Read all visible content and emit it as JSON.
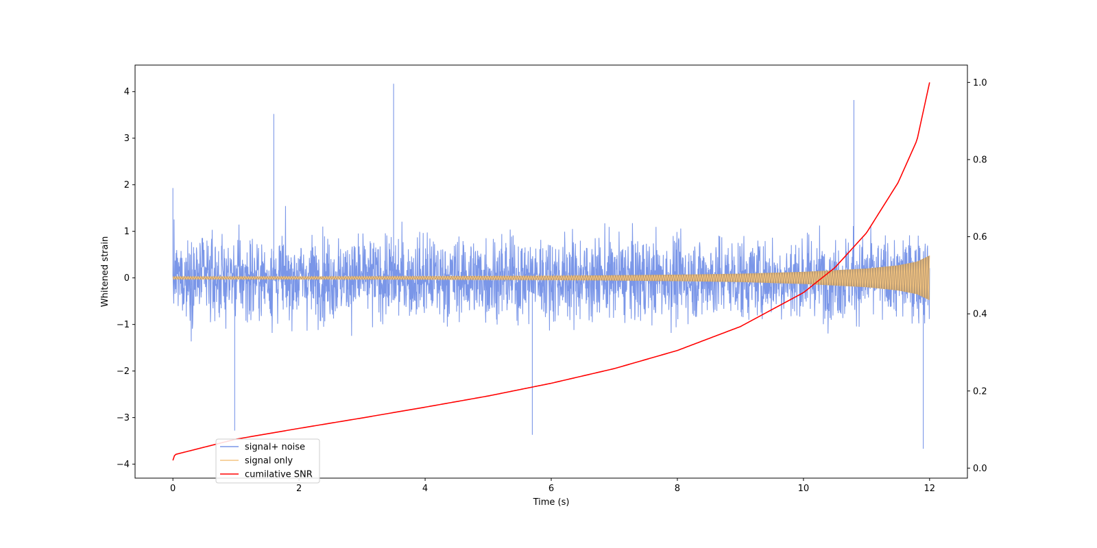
{
  "chart_data": {
    "type": "line",
    "title": "",
    "xlabel": "Time (s)",
    "ylabel": "Whitened strain",
    "y2label": "",
    "xlim": [
      -0.6,
      12.6
    ],
    "ylim": [
      -4.3,
      4.57
    ],
    "y2lim": [
      -0.026,
      1.045
    ],
    "x_ticks": [
      0,
      2,
      4,
      6,
      8,
      10,
      12
    ],
    "y_ticks": [
      -4,
      -3,
      -2,
      -1,
      0,
      1,
      2,
      3,
      4
    ],
    "y2_ticks": [
      0.0,
      0.2,
      0.4,
      0.6,
      0.8,
      1.0
    ],
    "y2_tick_labels": [
      "0.0",
      "0.2",
      "0.4",
      "0.6",
      "0.8",
      "1.0"
    ],
    "grid": false,
    "legend_position": "lower-left",
    "noise": {
      "t_start": 0,
      "t_end": 12,
      "typical_min": -1.6,
      "typical_max": 1.6,
      "peak_max": 4.17,
      "peak_min": -3.82
    },
    "series": [
      {
        "name": "signal+ noise",
        "color": "#7a96e8",
        "axis": "left",
        "x": [
          0,
          0.98,
          1.6,
          3.5,
          5.7,
          10.8,
          11.9
        ],
        "y": [
          1.93,
          -3.28,
          3.52,
          4.17,
          -3.37,
          3.82,
          -3.67
        ]
      },
      {
        "name": "signal only",
        "color": "#f4c480",
        "axis": "left",
        "envelope": {
          "x": [
            0,
            2,
            4,
            6,
            8,
            9,
            10,
            11,
            11.5,
            11.8,
            12
          ],
          "y": [
            0.03,
            0.03,
            0.035,
            0.045,
            0.07,
            0.09,
            0.13,
            0.2,
            0.27,
            0.35,
            0.48
          ]
        }
      },
      {
        "name": "cumilative SNR",
        "color": "#ff0000",
        "axis": "right",
        "x": [
          0,
          0.03,
          1,
          2,
          3,
          4,
          5,
          6,
          7,
          8,
          9,
          10,
          10.5,
          11,
          11.5,
          11.8,
          12
        ],
        "y": [
          0.02,
          0.035,
          0.075,
          0.103,
          0.13,
          0.158,
          0.187,
          0.22,
          0.258,
          0.305,
          0.367,
          0.455,
          0.52,
          0.61,
          0.74,
          0.85,
          1.0
        ]
      }
    ]
  }
}
